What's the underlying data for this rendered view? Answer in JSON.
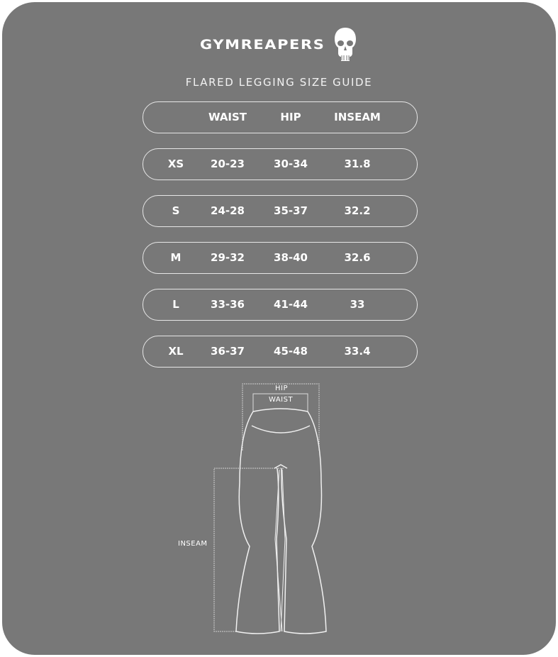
{
  "brand": {
    "name": "GYMREAPERS",
    "logo_icon": "skull-icon"
  },
  "title": "FLARED LEGGING SIZE GUIDE",
  "table": {
    "headers": [
      "",
      "WAIST",
      "HIP",
      "INSEAM"
    ],
    "rows": [
      [
        "XS",
        "20-23",
        "30-34",
        "31.8"
      ],
      [
        "S",
        "24-28",
        "35-37",
        "32.2"
      ],
      [
        "M",
        "29-32",
        "38-40",
        "32.6"
      ],
      [
        "L",
        "33-36",
        "41-44",
        "33"
      ],
      [
        "XL",
        "36-37",
        "45-48",
        "33.4"
      ]
    ]
  },
  "diagram": {
    "hip_label": "HIP",
    "waist_label": "WAIST",
    "inseam_label": "INSEAM"
  },
  "colors": {
    "background": "#787878",
    "foreground": "#ffffff"
  }
}
